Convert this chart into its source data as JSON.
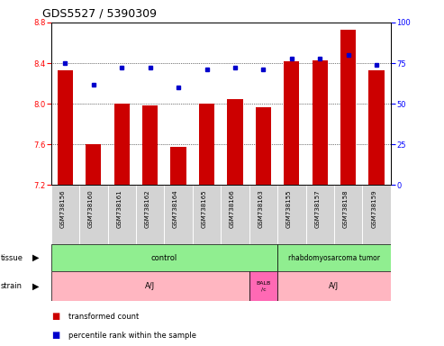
{
  "title": "GDS5527 / 5390309",
  "samples": [
    "GSM738156",
    "GSM738160",
    "GSM738161",
    "GSM738162",
    "GSM738164",
    "GSM738165",
    "GSM738166",
    "GSM738163",
    "GSM738155",
    "GSM738157",
    "GSM738158",
    "GSM738159"
  ],
  "red_values": [
    8.33,
    7.6,
    8.0,
    7.98,
    7.58,
    8.0,
    8.05,
    7.97,
    8.42,
    8.43,
    8.73,
    8.33
  ],
  "blue_values": [
    75,
    62,
    72,
    72,
    60,
    71,
    72,
    71,
    78,
    78,
    80,
    74
  ],
  "ylim_left": [
    7.2,
    8.8
  ],
  "ylim_right": [
    0,
    100
  ],
  "yticks_left": [
    7.2,
    7.6,
    8.0,
    8.4,
    8.8
  ],
  "yticks_right": [
    0,
    25,
    50,
    75,
    100
  ],
  "bar_color": "#CC0000",
  "dot_color": "#0000CC",
  "tissue_control_color": "#90EE90",
  "tissue_tumor_color": "#90EE90",
  "strain_aj_color": "#FFB6C1",
  "strain_balb_color": "#FF69B4",
  "sample_bg_color": "#D3D3D3",
  "title_fontsize": 9,
  "tick_fontsize": 6,
  "sample_fontsize": 5,
  "annotation_fontsize": 6,
  "legend_fontsize": 6
}
